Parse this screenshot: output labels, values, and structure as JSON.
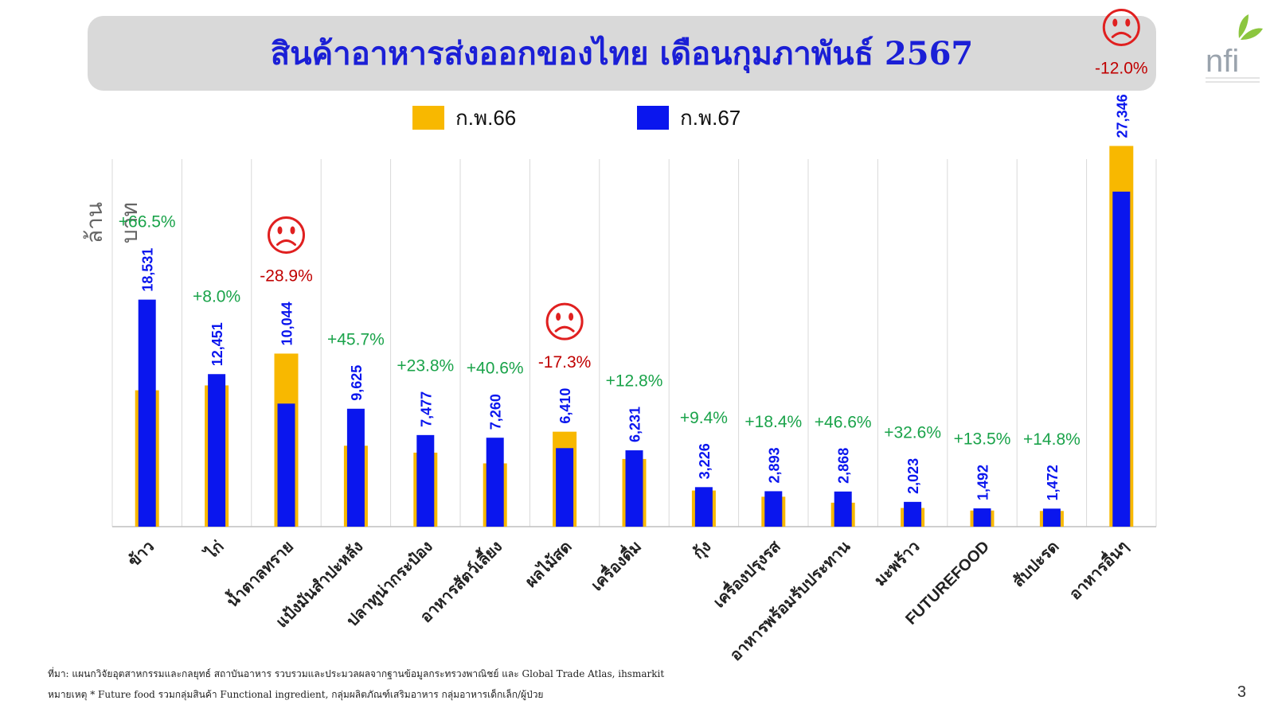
{
  "title": "สินค้าอาหารส่งออกของไทย เดือนกุมภาพันธ์ 2567",
  "logo_text": "nfi",
  "page_number": "3",
  "footnote": {
    "source": "ที่มา: แผนกวิจัยอุตสาหกรรมและกลยุทธ์ สถาบันอาหาร รวบรวมและประมวลผลจากฐานข้อมูลกระทรวงพาณิชย์ และ Global Trade Atlas, ihsmarkit",
    "note": "หมายเหตุ * Future food รวมกลุ่มสินค้า Functional ingredient, กลุ่มผลิตภัณฑ์เสริมอาหาร กลุ่มอาหารเด็กเล็ก/ผู้ป่วย"
  },
  "colors": {
    "title": "#1b1fd6",
    "prev_year": "#f8b800",
    "curr_year": "#0a16ee",
    "increase": "#1aa34a",
    "decrease": "#c00000",
    "sad_face": "#e02020"
  },
  "chart_data": {
    "type": "bar",
    "ylabel": "ล้านบาท",
    "ylim": [
      0,
      30000
    ],
    "grid": "vertical",
    "legend_position": "top",
    "categories": [
      "ข้าว",
      "ไก่",
      "น้ำตาลทราย",
      "แป้งมันสำปะหลัง",
      "ปลาทูน่ากระป๋อง",
      "อาหารสัตว์เลี้ยง",
      "ผลไม้สด",
      "เครื่องดื่ม",
      "กุ้ง",
      "เครื่องปรุงรส",
      "อาหารพร้อมรับประทาน",
      "มะพร้าว",
      "FUTUREFOOD",
      "สับปะรด",
      "อาหารอื่นๆ"
    ],
    "series": [
      {
        "name": "ก.พ.66",
        "values": [
          11130,
          11529,
          14127,
          6606,
          6040,
          5164,
          7751,
          5524,
          2949,
          2443,
          1956,
          1526,
          1315,
          1282,
          31075
        ]
      },
      {
        "name": "ก.พ.67",
        "values": [
          18531,
          12451,
          10044,
          9625,
          7477,
          7260,
          6410,
          6231,
          3226,
          2893,
          2868,
          2023,
          1492,
          1472,
          27346
        ]
      }
    ],
    "value_labels": [
      "18,531",
      "12,451",
      "10,044",
      "9,625",
      "7,477",
      "7,260",
      "6,410",
      "6,231",
      "3,226",
      "2,893",
      "2,868",
      "2,023",
      "1,492",
      "1,472",
      "27,346"
    ],
    "changes": [
      "+66.5%",
      "+8.0%",
      "-28.9%",
      "+45.7%",
      "+23.8%",
      "+40.6%",
      "-17.3%",
      "+12.8%",
      "+9.4%",
      "+18.4%",
      "+46.6%",
      "+32.6%",
      "+13.5%",
      "+14.8%",
      "-12.0%"
    ],
    "sad_markers": [
      "น้ำตาลทราย",
      "ผลไม้สด",
      "อาหารอื่นๆ"
    ]
  }
}
